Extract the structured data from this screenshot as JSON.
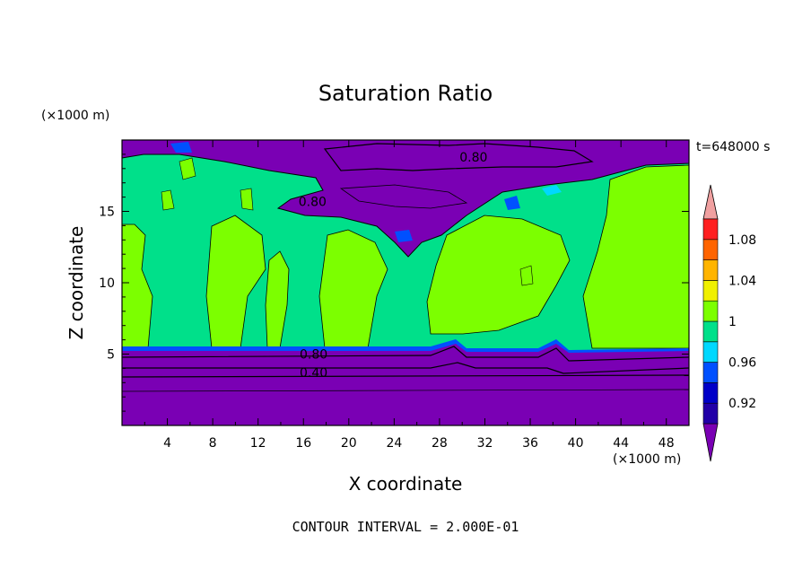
{
  "chart_data": {
    "type": "heatmap",
    "title": "Saturation Ratio",
    "xlabel": "X coordinate",
    "ylabel": "Z coordinate",
    "x_unit": "(×1000 m)",
    "y_unit": "(×1000 m)",
    "time_label": "t=648000 s",
    "footer": "CONTOUR INTERVAL = 2.000E-01",
    "xlim": [
      0,
      50
    ],
    "ylim": [
      0,
      20
    ],
    "x_ticks": [
      4,
      8,
      12,
      16,
      20,
      24,
      28,
      32,
      36,
      40,
      44,
      48
    ],
    "y_ticks": [
      5,
      10,
      15
    ],
    "colorbar": {
      "levels": [
        0.92,
        0.96,
        1,
        1.04,
        1.08
      ],
      "labels": [
        "0.92",
        "0.96",
        "1",
        "1.04",
        "1.08"
      ],
      "colors": [
        "#7a00b4",
        "#2200a8",
        "#0000c8",
        "#0050ff",
        "#00d8ff",
        "#00e08a",
        "#7cff00",
        "#f0f000",
        "#ffb400",
        "#ff6400",
        "#ff2020",
        "#f0a0a0"
      ],
      "extend": "both"
    },
    "contour_labels": [
      {
        "text": "0.80",
        "x": 31,
        "y": 18.8
      },
      {
        "text": "0.80",
        "x": 16.8,
        "y": 15.7
      },
      {
        "text": "0.80",
        "x": 16.9,
        "y": 5.0
      },
      {
        "text": "0.40",
        "x": 16.9,
        "y": 3.7
      }
    ],
    "regions": {
      "lower_layer_top_z": 5.4,
      "upper_dry_region": "x 14–50, z 15.5–20",
      "mid_level": "mix of near-saturated (1–1.04) and slightly subsaturated (0.96–1) air"
    }
  }
}
